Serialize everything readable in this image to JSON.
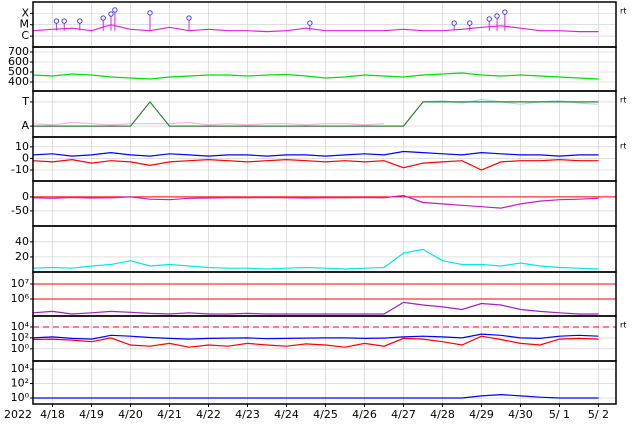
{
  "chart_data": [
    {
      "type": "line",
      "log": true,
      "right_label": "rt",
      "x": [
        17.5,
        18,
        18.5,
        19,
        19.5,
        20,
        20.5,
        21,
        21.5,
        22,
        22.5,
        23,
        23.5,
        24,
        24.5,
        25,
        25.5,
        26,
        26.5,
        27,
        27.5,
        28,
        28.5,
        29,
        29.5,
        30,
        30.5,
        31,
        31.5,
        32
      ],
      "xlim": [
        17.5,
        32.45
      ],
      "ylim": [
        1.1e-07,
        0.001
      ],
      "yticks": [
        {
          "value": 1e-06,
          "label": "C"
        },
        {
          "value": 1e-05,
          "label": "M"
        },
        {
          "value": 0.0001,
          "label": "X"
        }
      ],
      "series": [
        {
          "color": "#e020e0",
          "values": [
            3e-06,
            4e-06,
            5e-06,
            3e-06,
            1e-05,
            4e-06,
            3e-06,
            6e-06,
            3e-06,
            4e-06,
            3e-06,
            3e-06,
            2.5e-06,
            3e-06,
            5e-06,
            3e-06,
            3e-06,
            3e-06,
            3e-06,
            4e-06,
            3e-06,
            3e-06,
            4e-06,
            6e-06,
            8e-06,
            5e-06,
            3e-06,
            3e-06,
            2.5e-06,
            2.5e-06
          ]
        }
      ],
      "markers": {
        "color": "#4040ff",
        "x": [
          18.1,
          18.3,
          18.7,
          19.3,
          19.5,
          19.6,
          20.5,
          21.5,
          24.6,
          28.3,
          28.7,
          29.2,
          29.4,
          29.6
        ],
        "values": [
          2.1e-05,
          2.1e-05,
          2.1e-05,
          3.9e-05,
          8.7e-05,
          0.0002,
          0.00011,
          3.9e-05,
          1.4e-05,
          1.4e-05,
          1.4e-05,
          3.2e-05,
          5.9e-05,
          0.00013
        ]
      }
    },
    {
      "type": "line",
      "x": [
        17.5,
        18,
        18.5,
        19,
        19.5,
        20,
        20.5,
        21,
        21.5,
        22,
        22.5,
        23,
        23.5,
        24,
        24.5,
        25,
        25.5,
        26,
        26.5,
        27,
        27.5,
        28,
        28.5,
        29,
        29.5,
        30,
        30.5,
        31,
        31.5,
        32
      ],
      "xlim": [
        17.5,
        32.45
      ],
      "ylim": [
        310,
        750
      ],
      "yticks": [
        400,
        500,
        600,
        700
      ],
      "series": [
        {
          "color": "#00e000",
          "values": [
            470,
            460,
            480,
            470,
            450,
            440,
            430,
            450,
            460,
            470,
            470,
            460,
            470,
            475,
            460,
            440,
            450,
            470,
            460,
            450,
            470,
            480,
            490,
            470,
            460,
            470,
            460,
            450,
            440,
            430
          ]
        }
      ]
    },
    {
      "type": "line",
      "right_label": "rt",
      "x": [
        17.5,
        18,
        18.5,
        19,
        19.5,
        20,
        20.5,
        21,
        21.5,
        22,
        22.5,
        23,
        23.5,
        24,
        24.5,
        25,
        25.5,
        26,
        26.5,
        27,
        27.5,
        28,
        28.5,
        29,
        29.5,
        30,
        30.5,
        31,
        31.5,
        32
      ],
      "xlim": [
        17.5,
        32.45
      ],
      "ylim": [
        -0.45,
        1.45
      ],
      "yticks": [
        {
          "value": 0,
          "label": "A"
        },
        {
          "value": 1,
          "label": "T"
        }
      ],
      "series": [
        {
          "color": "#ffb0f0",
          "values": [
            0.1,
            0.05,
            0.15,
            0.1,
            0.05,
            0.1,
            0.1,
            0.1,
            0.15,
            0.05,
            0.1,
            0.05,
            0.1,
            0.1,
            0.05,
            0.1,
            0.1,
            0.05,
            0.1,
            null,
            null,
            null,
            null,
            null,
            null,
            null,
            null,
            null,
            null,
            null
          ]
        },
        {
          "color": "#a0e0ff",
          "values": [
            null,
            null,
            null,
            null,
            null,
            null,
            null,
            null,
            null,
            null,
            null,
            null,
            null,
            null,
            null,
            null,
            null,
            null,
            null,
            null,
            1,
            1.05,
            0.95,
            1.1,
            1,
            0.9,
            1,
            1.05,
            0.95,
            0.9
          ]
        },
        {
          "color": "#308030",
          "values": [
            0,
            0,
            0,
            0,
            0,
            0,
            1,
            0,
            0,
            0,
            0,
            0,
            0,
            0,
            0,
            0,
            0,
            0,
            0,
            0,
            1,
            1,
            1,
            1,
            1,
            1,
            1,
            1,
            1,
            1
          ]
        }
      ]
    },
    {
      "type": "line",
      "right_label": "rt",
      "x": [
        17.5,
        18,
        18.5,
        19,
        19.5,
        20,
        20.5,
        21,
        21.5,
        22,
        22.5,
        23,
        23.5,
        24,
        24.5,
        25,
        25.5,
        26,
        26.5,
        27,
        27.5,
        28,
        28.5,
        29,
        29.5,
        30,
        30.5,
        31,
        31.5,
        32
      ],
      "xlim": [
        17.5,
        32.45
      ],
      "ylim": [
        -19.5,
        18.5
      ],
      "yticks": [
        -10,
        0,
        10
      ],
      "series": [
        {
          "color": "#0000ff",
          "values": [
            3,
            4,
            2,
            3,
            5,
            3,
            2,
            4,
            3,
            2,
            3,
            3,
            2,
            3,
            3,
            2,
            3,
            4,
            3,
            6,
            5,
            4,
            3,
            5,
            4,
            3,
            3,
            2,
            3,
            3
          ]
        },
        {
          "color": "#ff0000",
          "values": [
            -2,
            -3,
            -1,
            -4,
            -2,
            -3,
            -6,
            -3,
            -2,
            -1,
            -2,
            -3,
            -2,
            -1,
            -2,
            -3,
            -2,
            -3,
            -2,
            -8,
            -4,
            -3,
            -2,
            -10,
            -3,
            -2,
            -2,
            -1,
            -2,
            -2
          ]
        }
      ]
    },
    {
      "type": "line",
      "x": [
        17.5,
        18,
        18.5,
        19,
        19.5,
        20,
        20.5,
        21,
        21.5,
        22,
        22.5,
        23,
        23.5,
        24,
        24.5,
        25,
        25.5,
        26,
        26.5,
        27,
        27.5,
        28,
        28.5,
        29,
        29.5,
        30,
        30.5,
        31,
        31.5,
        32
      ],
      "xlim": [
        17.5,
        32.45
      ],
      "ylim": [
        -104,
        57
      ],
      "yticks": [
        -50,
        0
      ],
      "hlines": [
        {
          "value": 0,
          "color": "#ff0000",
          "dash": false
        }
      ],
      "series": [
        {
          "color": "#c020c0",
          "values": [
            -3,
            -5,
            -2,
            -4,
            -3,
            0,
            -8,
            -10,
            -5,
            -4,
            -3,
            -3,
            -2,
            -3,
            -4,
            -3,
            -3,
            -2,
            -3,
            5,
            -20,
            -25,
            -30,
            -35,
            -40,
            -25,
            -15,
            -10,
            -8,
            -5
          ]
        }
      ]
    },
    {
      "type": "line",
      "x": [
        17.5,
        18,
        18.5,
        19,
        19.5,
        20,
        20.5,
        21,
        21.5,
        22,
        22.5,
        23,
        23.5,
        24,
        24.5,
        25,
        25.5,
        26,
        26.5,
        27,
        27.5,
        28,
        28.5,
        29,
        29.5,
        30,
        30.5,
        31,
        31.5,
        32
      ],
      "xlim": [
        17.5,
        32.45
      ],
      "ylim": [
        0,
        61
      ],
      "yticks": [
        20,
        40
      ],
      "series": [
        {
          "color": "#00e8e8",
          "values": [
            5,
            6,
            5,
            8,
            10,
            15,
            8,
            10,
            8,
            6,
            5,
            5,
            4,
            5,
            6,
            5,
            4,
            5,
            6,
            25,
            30,
            15,
            10,
            10,
            8,
            12,
            8,
            6,
            5,
            4
          ]
        }
      ]
    },
    {
      "type": "line",
      "log": true,
      "x": [
        17.5,
        18,
        18.5,
        19,
        19.5,
        20,
        20.5,
        21,
        21.5,
        22,
        22.5,
        23,
        23.5,
        24,
        24.5,
        25,
        25.5,
        26,
        26.5,
        27,
        27.5,
        28,
        28.5,
        29,
        29.5,
        30,
        30.5,
        31,
        31.5,
        32
      ],
      "xlim": [
        17.5,
        32.45
      ],
      "ylim": [
        74000,
        63000000
      ],
      "yticks": [
        {
          "value": 1000000,
          "label": "10⁶"
        },
        {
          "value": 10000000,
          "label": "10⁷"
        }
      ],
      "hlines": [
        {
          "value": 1000000,
          "color": "#ff0000",
          "dash": false
        },
        {
          "value": 10000000,
          "color": "#ff0000",
          "dash": false
        }
      ],
      "series": [
        {
          "color": "#a020c0",
          "values": [
            120000,
            150000,
            100000,
            120000,
            150000,
            130000,
            110000,
            100000,
            120000,
            100000,
            100000,
            110000,
            100000,
            100000,
            100000,
            100000,
            100000,
            100000,
            100000,
            600000,
            400000,
            300000,
            200000,
            500000,
            400000,
            200000,
            150000,
            120000,
            100000,
            100000
          ]
        }
      ]
    },
    {
      "type": "line",
      "log": true,
      "right_label": "rt",
      "x": [
        17.5,
        18,
        18.5,
        19,
        19.5,
        20,
        20.5,
        21,
        21.5,
        22,
        22.5,
        23,
        23.5,
        24,
        24.5,
        25,
        25.5,
        26,
        26.5,
        27,
        27.5,
        28,
        28.5,
        29,
        29.5,
        30,
        30.5,
        31,
        31.5,
        32
      ],
      "xlim": [
        17.5,
        32.45
      ],
      "ylim": [
        0.006,
        1000000
      ],
      "yticks": [
        {
          "value": 1,
          "label": "10⁰"
        },
        {
          "value": 100,
          "label": "10²"
        },
        {
          "value": 10000,
          "label": "10⁴"
        }
      ],
      "hlines": [
        {
          "value": 10000,
          "color": "#ff0000",
          "dash": true
        }
      ],
      "series": [
        {
          "color": "#0000ff",
          "values": [
            100,
            150,
            80,
            60,
            300,
            200,
            120,
            80,
            60,
            80,
            90,
            100,
            70,
            80,
            90,
            100,
            100,
            80,
            90,
            150,
            200,
            150,
            100,
            500,
            300,
            100,
            80,
            200,
            300,
            200
          ]
        },
        {
          "color": "#ff0000",
          "values": [
            50,
            60,
            40,
            20,
            100,
            5,
            3,
            10,
            2,
            5,
            3,
            10,
            5,
            3,
            8,
            5,
            2,
            10,
            3,
            80,
            60,
            20,
            5,
            200,
            50,
            10,
            5,
            60,
            80,
            60
          ]
        }
      ]
    },
    {
      "type": "line",
      "log": true,
      "year_label": "2022",
      "x": [
        17.5,
        18,
        18.5,
        19,
        19.5,
        20,
        20.5,
        21,
        21.5,
        22,
        22.5,
        23,
        23.5,
        24,
        24.5,
        25,
        25.5,
        26,
        26.5,
        27,
        27.5,
        28,
        28.5,
        29,
        29.5,
        30,
        30.5,
        31,
        31.5,
        32
      ],
      "xlim": [
        17.5,
        32.45
      ],
      "ylim": [
        0.15,
        130000
      ],
      "yticks": [
        {
          "value": 1,
          "label": "10⁰"
        },
        {
          "value": 100,
          "label": "10²"
        },
        {
          "value": 10000,
          "label": "10⁴"
        }
      ],
      "xticks": [
        {
          "value": 18,
          "label": "4/18"
        },
        {
          "value": 19,
          "label": "4/19"
        },
        {
          "value": 20,
          "label": "4/20"
        },
        {
          "value": 21,
          "label": "4/21"
        },
        {
          "value": 22,
          "label": "4/22"
        },
        {
          "value": 23,
          "label": "4/23"
        },
        {
          "value": 24,
          "label": "4/24"
        },
        {
          "value": 25,
          "label": "4/25"
        },
        {
          "value": 26,
          "label": "4/26"
        },
        {
          "value": 27,
          "label": "4/27"
        },
        {
          "value": 28,
          "label": "4/28"
        },
        {
          "value": 29,
          "label": "4/29"
        },
        {
          "value": 30,
          "label": "4/30"
        },
        {
          "value": 31,
          "label": "5/ 1"
        },
        {
          "value": 32,
          "label": "5/ 2"
        }
      ],
      "series": [
        {
          "color": "#0000ff",
          "values": [
            1,
            1,
            1,
            1,
            1,
            1,
            1,
            1,
            1,
            1,
            1,
            1,
            1,
            1,
            1,
            1,
            1,
            1,
            1,
            1,
            1,
            1,
            1,
            2,
            3,
            2,
            1.3,
            1,
            1,
            1
          ]
        }
      ]
    }
  ]
}
